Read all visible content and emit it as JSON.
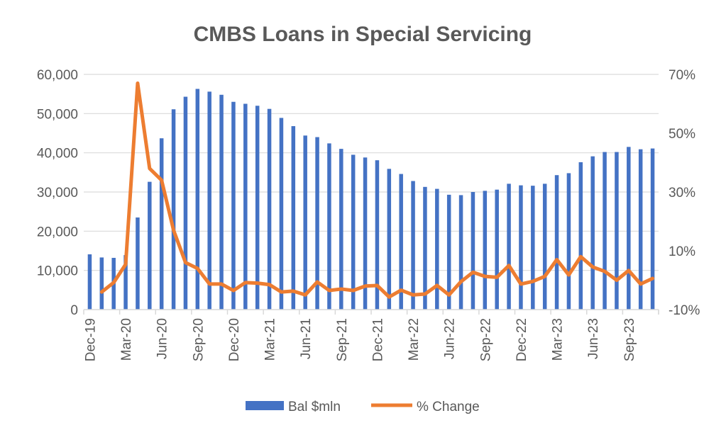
{
  "chart_data": {
    "type": "bar+line",
    "title": "CMBS Loans in Special Servicing",
    "categories": [
      "Dec-19",
      "Jan-20",
      "Feb-20",
      "Mar-20",
      "Apr-20",
      "May-20",
      "Jun-20",
      "Jul-20",
      "Aug-20",
      "Sep-20",
      "Oct-20",
      "Nov-20",
      "Dec-20",
      "Jan-21",
      "Feb-21",
      "Mar-21",
      "Apr-21",
      "May-21",
      "Jun-21",
      "Jul-21",
      "Aug-21",
      "Sep-21",
      "Oct-21",
      "Nov-21",
      "Dec-21",
      "Jan-22",
      "Feb-22",
      "Mar-22",
      "Apr-22",
      "May-22",
      "Jun-22",
      "Jul-22",
      "Aug-22",
      "Sep-22",
      "Oct-22",
      "Nov-22",
      "Dec-22",
      "Jan-23",
      "Feb-23",
      "Mar-23",
      "Apr-23",
      "May-23",
      "Jun-23",
      "Jul-23",
      "Aug-23",
      "Sep-23",
      "Oct-23",
      "Nov-23"
    ],
    "x_tick_labels": [
      "Dec-19",
      "Mar-20",
      "Jun-20",
      "Sep-20",
      "Dec-20",
      "Mar-21",
      "Jun-21",
      "Sep-21",
      "Dec-21",
      "Mar-22",
      "Jun-22",
      "Sep-22",
      "Dec-22",
      "Mar-23",
      "Jun-23",
      "Sep-23"
    ],
    "series": [
      {
        "name": "Bal $mln",
        "type": "bar",
        "axis": "left",
        "color": "#4472C4",
        "values": [
          14100,
          13300,
          13200,
          13900,
          23500,
          32600,
          43700,
          51100,
          54300,
          56300,
          55600,
          54800,
          53000,
          52500,
          52000,
          51200,
          48900,
          46800,
          44400,
          44000,
          42400,
          41000,
          39500,
          38800,
          38100,
          35900,
          34600,
          32800,
          31300,
          30800,
          29300,
          29200,
          30000,
          30300,
          30600,
          32100,
          31700,
          31600,
          32100,
          34300,
          34800,
          37600,
          39100,
          40200,
          40200,
          41500,
          40900,
          41100
        ]
      },
      {
        "name": "% Change",
        "type": "line",
        "axis": "right",
        "color": "#ED7D31",
        "values": [
          null,
          -4.0,
          -0.8,
          5.4,
          67,
          38,
          34,
          17,
          6,
          4,
          -1.3,
          -1.3,
          -3.5,
          -0.8,
          -1.0,
          -1.5,
          -4.0,
          -3.7,
          -5.0,
          -0.6,
          -3.5,
          -3.0,
          -3.5,
          -2.0,
          -1.8,
          -5.7,
          -3.4,
          -5.0,
          -4.7,
          -1.8,
          -5.0,
          -0.5,
          2.7,
          1.3,
          1.0,
          5.0,
          -1.3,
          -0.4,
          1.3,
          7.0,
          1.8,
          8.0,
          4.5,
          3.0,
          0.0,
          3.3,
          -1.3,
          0.6
        ]
      }
    ],
    "y_left": {
      "range": [
        0,
        60000
      ],
      "ticks": [
        "0",
        "10,000",
        "20,000",
        "30,000",
        "40,000",
        "50,000",
        "60,000"
      ]
    },
    "y_right": {
      "range": [
        -10,
        70
      ],
      "unit": "%",
      "ticks": [
        "-10%",
        "10%",
        "30%",
        "50%",
        "70%"
      ]
    },
    "grid": true,
    "legend_position": "bottom"
  }
}
